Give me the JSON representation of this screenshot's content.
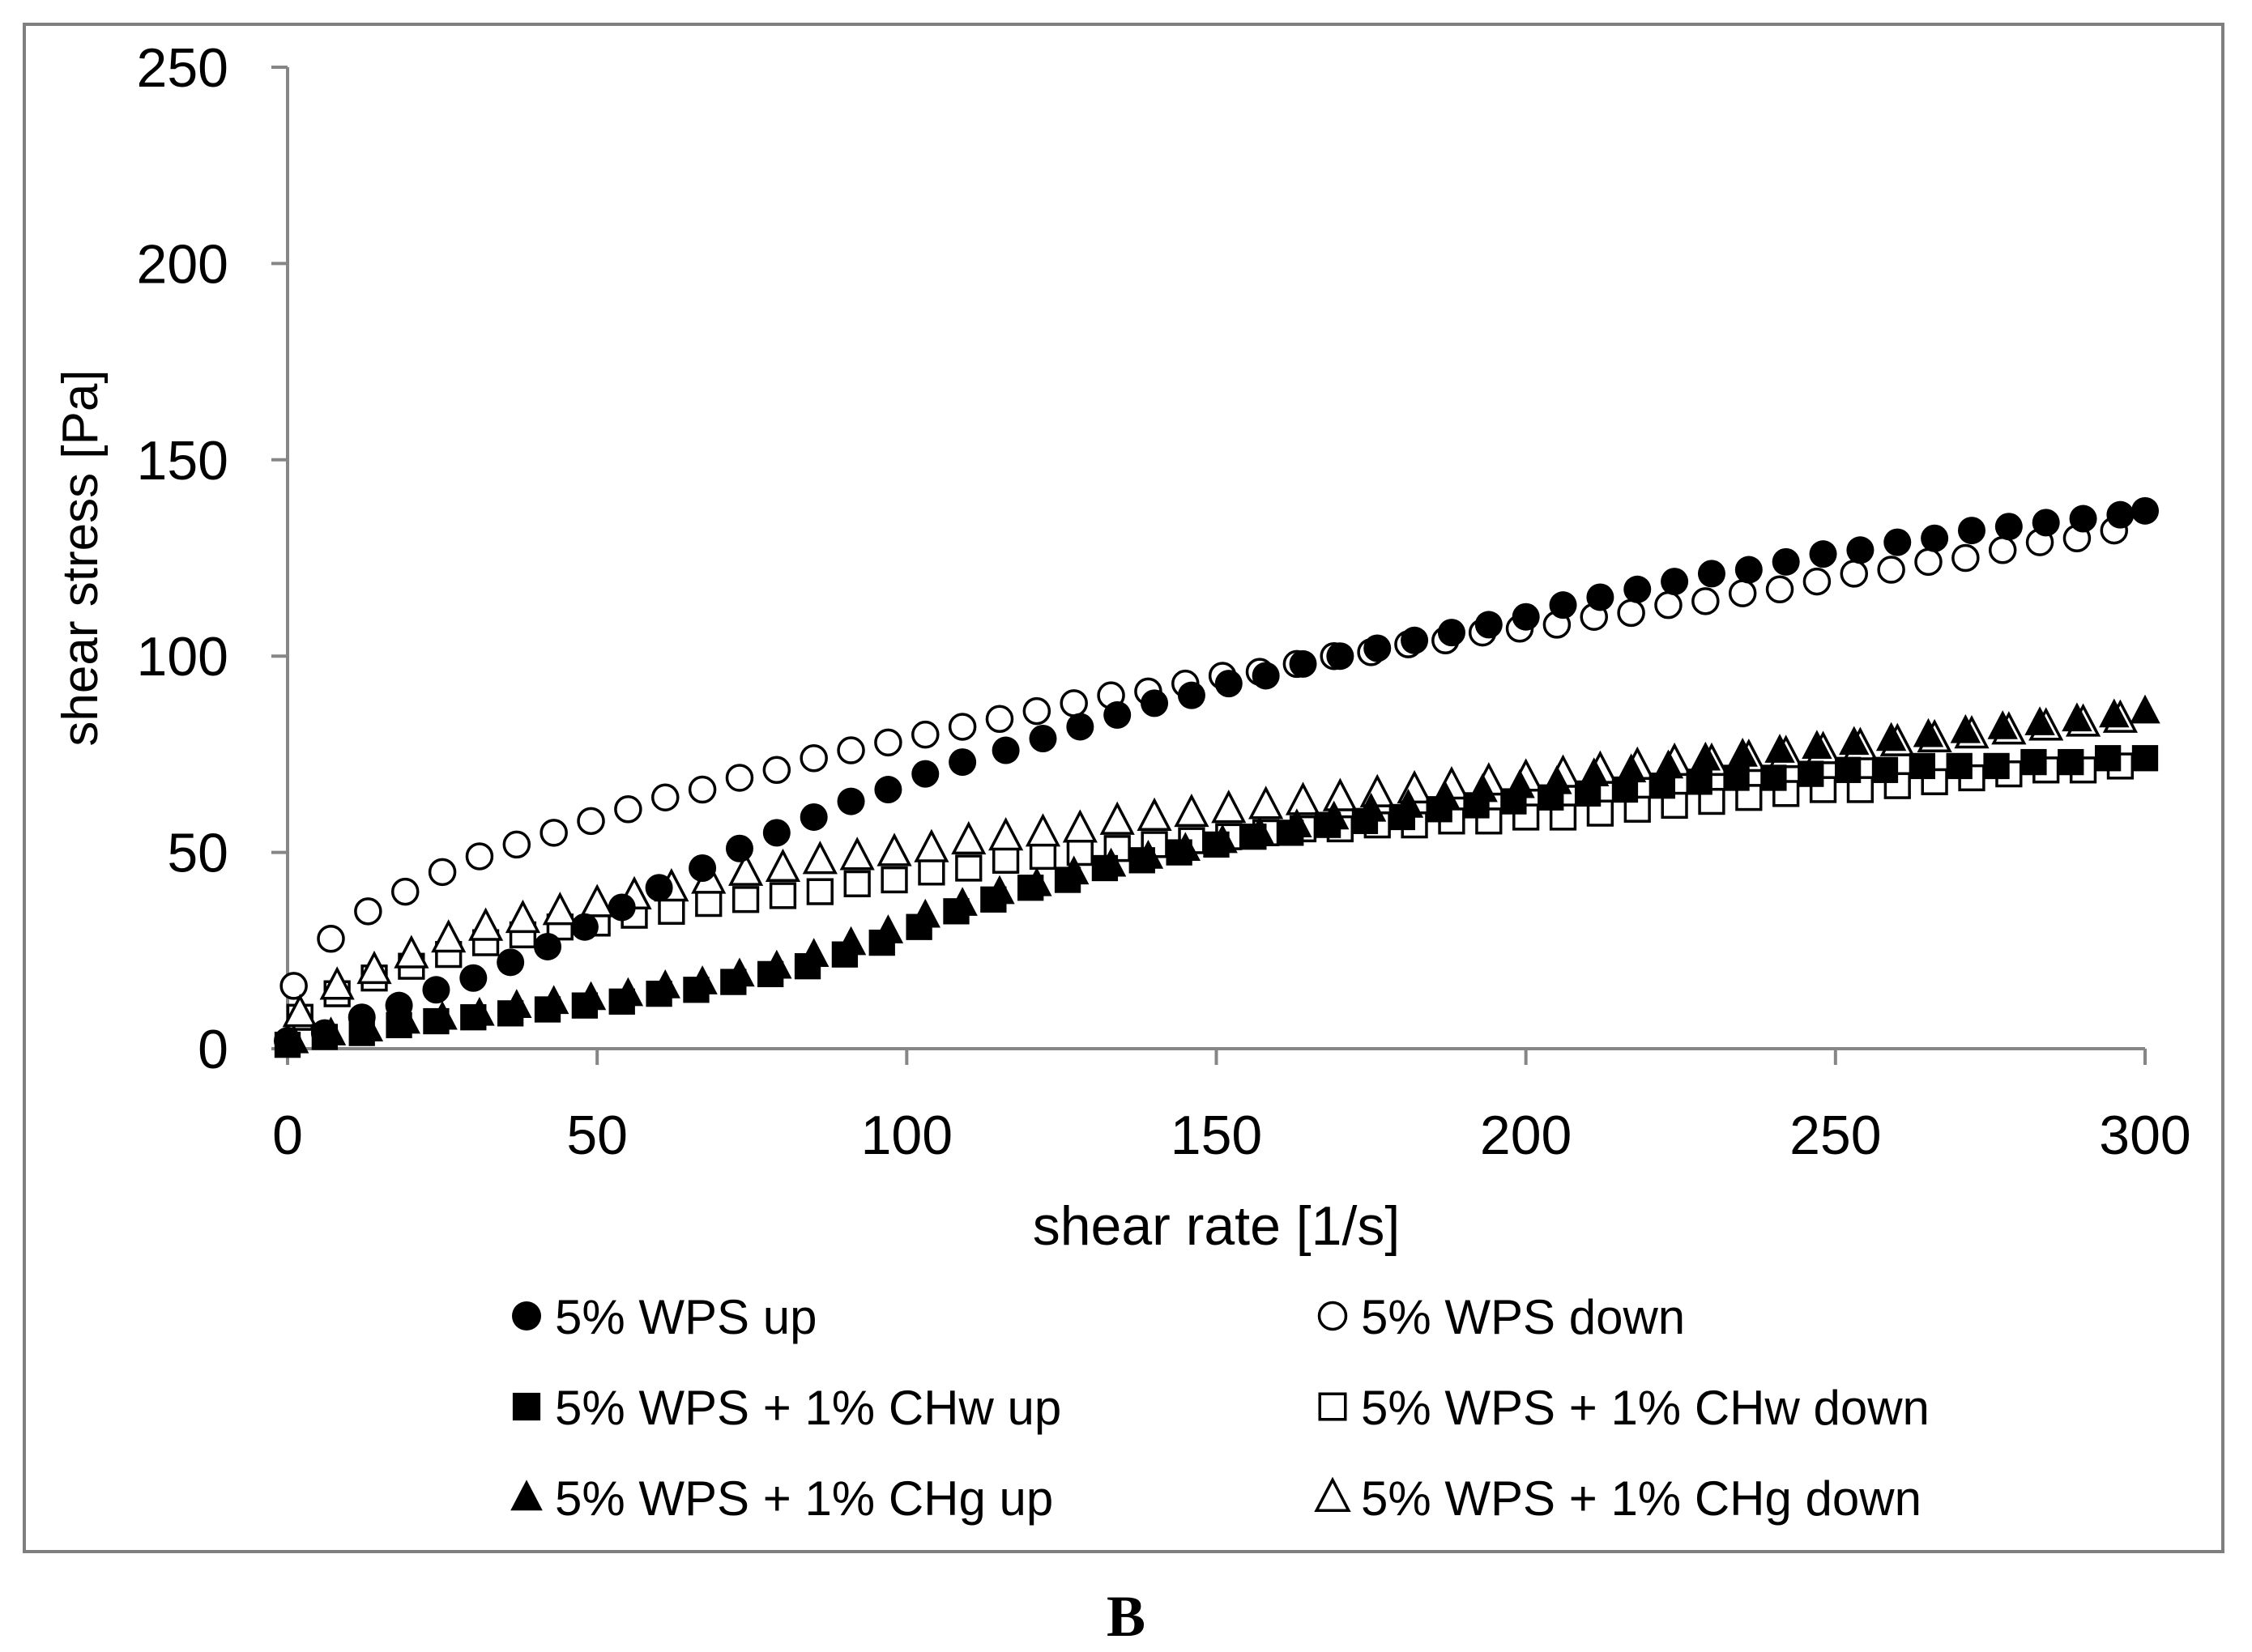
{
  "chart_data": {
    "type": "scatter",
    "title": "",
    "xlabel": "shear rate  [1/s]",
    "ylabel": "shear stress  [Pa]",
    "xlim": [
      0,
      300
    ],
    "ylim": [
      0,
      250
    ],
    "xticks": [
      0,
      50,
      100,
      150,
      200,
      250,
      300
    ],
    "yticks": [
      0,
      50,
      100,
      150,
      200,
      250
    ],
    "grid": false,
    "legend_position": "bottom",
    "panel_label": "B",
    "series": [
      {
        "name": "5% WPS up",
        "marker": "circle-filled",
        "color": "#000000",
        "x": [
          0,
          6,
          12,
          18,
          24,
          30,
          36,
          42,
          48,
          54,
          60,
          67,
          73,
          79,
          85,
          91,
          97,
          103,
          109,
          116,
          122,
          128,
          134,
          140,
          146,
          152,
          158,
          164,
          170,
          176,
          182,
          188,
          194,
          200,
          206,
          212,
          218,
          224,
          230,
          236,
          242,
          248,
          254,
          260,
          266,
          272,
          278,
          284,
          290,
          296,
          300
        ],
        "y": [
          2,
          4,
          8,
          11,
          15,
          18,
          22,
          26,
          31,
          36,
          41,
          46,
          51,
          55,
          59,
          63,
          66,
          70,
          73,
          76,
          79,
          82,
          85,
          88,
          90,
          93,
          95,
          98,
          100,
          102,
          104,
          106,
          108,
          110,
          113,
          115,
          117,
          119,
          121,
          122,
          124,
          126,
          127,
          129,
          130,
          132,
          133,
          134,
          135,
          136,
          137
        ]
      },
      {
        "name": "5% WPS down",
        "marker": "circle-open",
        "color": "#000000",
        "x": [
          1,
          7,
          13,
          19,
          25,
          31,
          37,
          43,
          49,
          55,
          61,
          67,
          73,
          79,
          85,
          91,
          97,
          103,
          109,
          115,
          121,
          127,
          133,
          139,
          145,
          151,
          157,
          163,
          169,
          175,
          181,
          187,
          193,
          199,
          205,
          211,
          217,
          223,
          229,
          235,
          241,
          247,
          253,
          259,
          265,
          271,
          277,
          283,
          289,
          295
        ],
        "y": [
          16,
          28,
          35,
          40,
          45,
          49,
          52,
          55,
          58,
          61,
          64,
          66,
          69,
          71,
          74,
          76,
          78,
          80,
          82,
          84,
          86,
          88,
          90,
          91,
          93,
          95,
          96,
          98,
          100,
          101,
          103,
          104,
          106,
          107,
          108,
          110,
          111,
          113,
          114,
          116,
          117,
          119,
          121,
          122,
          124,
          125,
          127,
          129,
          130,
          132
        ]
      },
      {
        "name": "5% WPS + 1% CHw up",
        "marker": "square-filled",
        "color": "#000000",
        "x": [
          0,
          6,
          12,
          18,
          24,
          30,
          36,
          42,
          48,
          54,
          60,
          66,
          72,
          78,
          84,
          90,
          96,
          102,
          108,
          114,
          120,
          126,
          132,
          138,
          144,
          150,
          156,
          162,
          168,
          174,
          180,
          186,
          192,
          198,
          204,
          210,
          216,
          222,
          228,
          234,
          240,
          246,
          252,
          258,
          264,
          270,
          276,
          282,
          288,
          294,
          300
        ],
        "y": [
          1,
          3,
          4,
          6,
          7,
          8,
          9,
          10,
          11,
          12,
          14,
          15,
          17,
          19,
          21,
          24,
          27,
          31,
          35,
          38,
          41,
          43,
          46,
          48,
          50,
          52,
          54,
          55,
          57,
          58,
          59,
          61,
          62,
          63,
          64,
          65,
          66,
          67,
          68,
          69,
          69,
          70,
          71,
          71,
          72,
          72,
          72,
          73,
          73,
          74,
          74
        ]
      },
      {
        "name": "5% WPS + 1% CHw down",
        "marker": "square-open",
        "color": "#000000",
        "x": [
          2,
          8,
          14,
          20,
          26,
          32,
          38,
          44,
          50,
          56,
          62,
          68,
          74,
          80,
          86,
          92,
          98,
          104,
          110,
          116,
          122,
          128,
          134,
          140,
          146,
          152,
          158,
          164,
          170,
          176,
          182,
          188,
          194,
          200,
          206,
          212,
          218,
          224,
          230,
          236,
          242,
          248,
          254,
          260,
          266,
          272,
          278,
          284,
          290,
          296
        ],
        "y": [
          8,
          14,
          18,
          21,
          24,
          27,
          29,
          31,
          32,
          34,
          35,
          37,
          38,
          39,
          40,
          42,
          43,
          45,
          46,
          48,
          49,
          50,
          51,
          52,
          53,
          54,
          55,
          56,
          56,
          57,
          57,
          58,
          58,
          59,
          59,
          60,
          61,
          62,
          63,
          64,
          65,
          66,
          66,
          67,
          68,
          69,
          70,
          71,
          71,
          72
        ]
      },
      {
        "name": "5% WPS + 1% CHg up",
        "marker": "triangle-filled",
        "color": "#000000",
        "x": [
          1,
          7,
          13,
          19,
          25,
          31,
          37,
          43,
          49,
          55,
          61,
          67,
          73,
          79,
          85,
          91,
          97,
          103,
          109,
          115,
          121,
          127,
          133,
          139,
          145,
          151,
          157,
          163,
          169,
          175,
          181,
          187,
          193,
          199,
          205,
          211,
          217,
          223,
          229,
          235,
          241,
          247,
          253,
          259,
          265,
          271,
          277,
          283,
          289,
          295,
          300
        ],
        "y": [
          2,
          4,
          5,
          7,
          8,
          9,
          11,
          12,
          13,
          14,
          16,
          17,
          19,
          21,
          24,
          27,
          30,
          34,
          37,
          40,
          42,
          45,
          47,
          49,
          51,
          53,
          55,
          57,
          59,
          61,
          62,
          64,
          66,
          67,
          68,
          70,
          71,
          72,
          74,
          75,
          76,
          77,
          78,
          79,
          80,
          81,
          82,
          83,
          84,
          85,
          86
        ]
      },
      {
        "name": "5% WPS + 1% CHg down",
        "marker": "triangle-open",
        "color": "#000000",
        "x": [
          2,
          8,
          14,
          20,
          26,
          32,
          38,
          44,
          50,
          56,
          62,
          68,
          74,
          80,
          86,
          92,
          98,
          104,
          110,
          116,
          122,
          128,
          134,
          140,
          146,
          152,
          158,
          164,
          170,
          176,
          182,
          188,
          194,
          200,
          206,
          212,
          218,
          224,
          230,
          236,
          242,
          248,
          254,
          260,
          266,
          272,
          278,
          284,
          290,
          296
        ],
        "y": [
          9,
          16,
          20,
          24,
          28,
          31,
          33,
          35,
          37,
          39,
          41,
          43,
          45,
          46,
          48,
          49,
          50,
          51,
          53,
          54,
          55,
          56,
          58,
          59,
          60,
          61,
          62,
          63,
          64,
          65,
          66,
          67,
          68,
          69,
          70,
          71,
          72,
          73,
          73,
          74,
          75,
          76,
          77,
          78,
          79,
          80,
          81,
          82,
          83,
          84
        ]
      }
    ]
  }
}
